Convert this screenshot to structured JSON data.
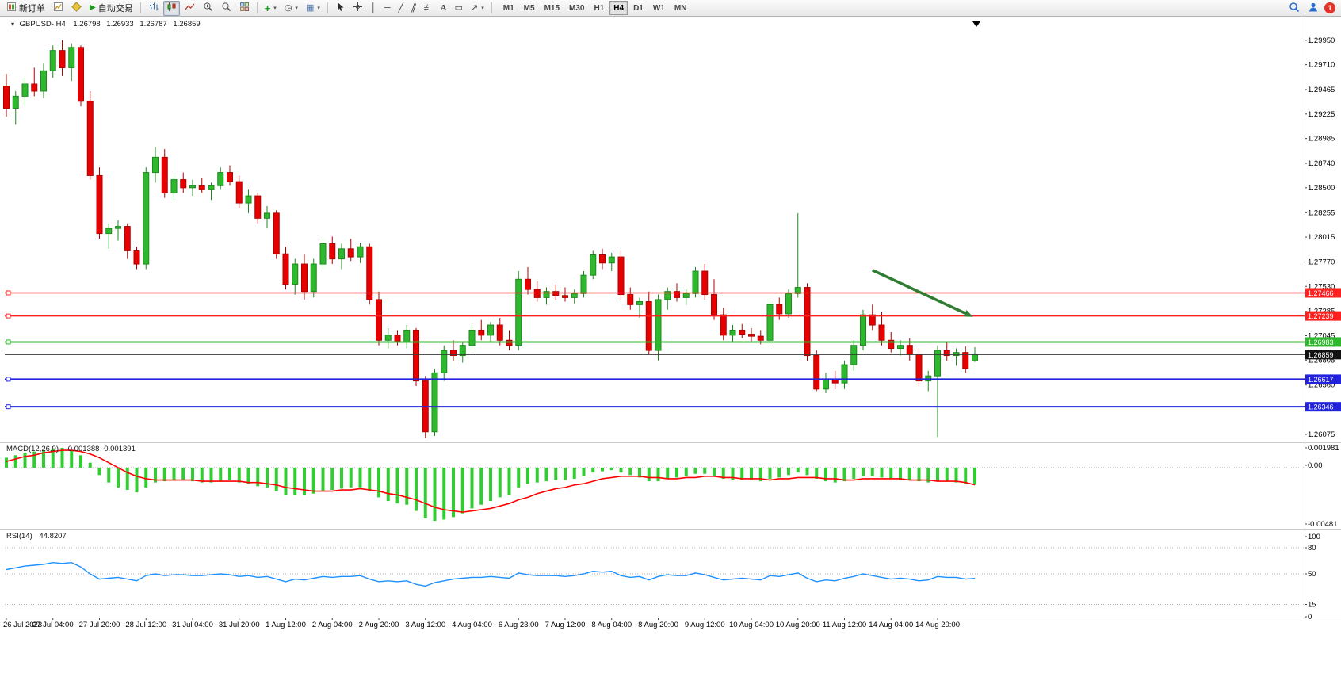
{
  "toolbar": {
    "new_order_label": "新订单",
    "auto_trading_label": "自动交易",
    "text_tool_label": "A",
    "timeframes": [
      "M1",
      "M5",
      "M15",
      "M30",
      "H1",
      "H4",
      "D1",
      "W1",
      "MN"
    ],
    "active_timeframe": "H4",
    "notification_count": "1"
  },
  "symbol_header": {
    "symbol": "GBPUSD-,H4",
    "open": "1.26798",
    "high": "1.26933",
    "low": "1.26787",
    "close": "1.26859"
  },
  "indicators": {
    "macd": {
      "title": "MACD(12,26,9)",
      "values": "-0.001388 -0.001391"
    },
    "rsi": {
      "title": "RSI(14)",
      "value": "44.8207"
    }
  },
  "colors": {
    "up": "#2eb82e",
    "up_stroke": "#1d8a1d",
    "down": "#e60000",
    "down_stroke": "#b00000",
    "macd_hist": "#32cd32",
    "macd_signal": "#ff0000",
    "rsi_line": "#1e90ff",
    "arrow": "#2e7d32",
    "axis_text": "#000000"
  },
  "chart_data": [
    {
      "type": "candlestick",
      "title": "GBPUSD H4",
      "ylim": [
        1.2602,
        1.3012
      ],
      "y_axis_labels": [
        "1.29950",
        "1.29710",
        "1.29465",
        "1.29225",
        "1.28985",
        "1.28740",
        "1.28500",
        "1.28255",
        "1.28015",
        "1.27770",
        "1.27530",
        "1.27285",
        "1.27045",
        "1.26805",
        "1.26560",
        "1.26075"
      ],
      "x_axis_labels": [
        "26 Jul 2023",
        "27 Jul 04:00",
        "27 Jul 20:00",
        "28 Jul 12:00",
        "31 Jul 04:00",
        "31 Jul 20:00",
        "1 Aug 12:00",
        "2 Aug 04:00",
        "2 Aug 20:00",
        "3 Aug 12:00",
        "4 Aug 04:00",
        "6 Aug 23:00",
        "7 Aug 12:00",
        "8 Aug 04:00",
        "8 Aug 20:00",
        "9 Aug 12:00",
        "10 Aug 04:00",
        "10 Aug 20:00",
        "11 Aug 12:00",
        "14 Aug 04:00",
        "14 Aug 20:00"
      ],
      "candles": [
        [
          1.295,
          1.2962,
          1.292,
          1.2928
        ],
        [
          1.2928,
          1.2945,
          1.2912,
          1.294
        ],
        [
          1.294,
          1.2958,
          1.293,
          1.2952
        ],
        [
          1.2952,
          1.2968,
          1.294,
          1.2945
        ],
        [
          1.2945,
          1.2972,
          1.2938,
          1.2965
        ],
        [
          1.2965,
          1.299,
          1.2958,
          1.2985
        ],
        [
          1.2985,
          1.2995,
          1.296,
          1.2968
        ],
        [
          1.2968,
          1.2992,
          1.2955,
          1.2988
        ],
        [
          1.2988,
          1.299,
          1.293,
          1.2935
        ],
        [
          1.2935,
          1.2945,
          1.2858,
          1.2862
        ],
        [
          1.2862,
          1.287,
          1.28,
          1.2805
        ],
        [
          1.2805,
          1.2815,
          1.279,
          1.281
        ],
        [
          1.281,
          1.2818,
          1.2798,
          1.2812
        ],
        [
          1.2812,
          1.2815,
          1.278,
          1.2788
        ],
        [
          1.2788,
          1.2792,
          1.277,
          1.2775
        ],
        [
          1.2775,
          1.287,
          1.277,
          1.2865
        ],
        [
          1.2865,
          1.289,
          1.2855,
          1.288
        ],
        [
          1.288,
          1.2888,
          1.284,
          1.2845
        ],
        [
          1.2845,
          1.2862,
          1.2838,
          1.2858
        ],
        [
          1.2858,
          1.2865,
          1.2845,
          1.285
        ],
        [
          1.285,
          1.2858,
          1.2842,
          1.2852
        ],
        [
          1.2852,
          1.286,
          1.2845,
          1.2848
        ],
        [
          1.2848,
          1.2855,
          1.2838,
          1.2852
        ],
        [
          1.2852,
          1.287,
          1.2848,
          1.2865
        ],
        [
          1.2865,
          1.2872,
          1.2852,
          1.2856
        ],
        [
          1.2856,
          1.2862,
          1.283,
          1.2835
        ],
        [
          1.2835,
          1.2848,
          1.2825,
          1.2842
        ],
        [
          1.2842,
          1.2845,
          1.2815,
          1.282
        ],
        [
          1.282,
          1.2832,
          1.281,
          1.2825
        ],
        [
          1.2825,
          1.2828,
          1.278,
          1.2785
        ],
        [
          1.2785,
          1.2792,
          1.275,
          1.2755
        ],
        [
          1.2755,
          1.278,
          1.2745,
          1.2775
        ],
        [
          1.2775,
          1.2785,
          1.274,
          1.2748
        ],
        [
          1.2748,
          1.278,
          1.2742,
          1.2775
        ],
        [
          1.2775,
          1.28,
          1.277,
          1.2795
        ],
        [
          1.2795,
          1.2802,
          1.2775,
          1.278
        ],
        [
          1.278,
          1.2795,
          1.277,
          1.279
        ],
        [
          1.279,
          1.28,
          1.2778,
          1.2782
        ],
        [
          1.2782,
          1.2796,
          1.2776,
          1.2792
        ],
        [
          1.2792,
          1.2795,
          1.2735,
          1.274
        ],
        [
          1.274,
          1.2748,
          1.2695,
          1.27
        ],
        [
          1.27,
          1.2712,
          1.2692,
          1.2705
        ],
        [
          1.2705,
          1.271,
          1.2695,
          1.2698
        ],
        [
          1.2698,
          1.2715,
          1.2692,
          1.271
        ],
        [
          1.271,
          1.2712,
          1.2655,
          1.266
        ],
        [
          1.266,
          1.2665,
          1.2604,
          1.261
        ],
        [
          1.261,
          1.2672,
          1.2606,
          1.2668
        ],
        [
          1.2668,
          1.2695,
          1.266,
          1.269
        ],
        [
          1.269,
          1.27,
          1.268,
          1.2685
        ],
        [
          1.2685,
          1.2698,
          1.2678,
          1.2695
        ],
        [
          1.2695,
          1.2715,
          1.269,
          1.271
        ],
        [
          1.271,
          1.272,
          1.27,
          1.2705
        ],
        [
          1.2705,
          1.2718,
          1.2698,
          1.2715
        ],
        [
          1.2715,
          1.2722,
          1.2695,
          1.27
        ],
        [
          1.27,
          1.271,
          1.269,
          1.2695
        ],
        [
          1.2695,
          1.2768,
          1.269,
          1.276
        ],
        [
          1.276,
          1.2772,
          1.2745,
          1.275
        ],
        [
          1.275,
          1.2758,
          1.2738,
          1.2742
        ],
        [
          1.2742,
          1.2752,
          1.2735,
          1.2748
        ],
        [
          1.2748,
          1.2755,
          1.274,
          1.2744
        ],
        [
          1.2744,
          1.2752,
          1.2738,
          1.2742
        ],
        [
          1.2742,
          1.275,
          1.2736,
          1.2746
        ],
        [
          1.2746,
          1.2768,
          1.2742,
          1.2764
        ],
        [
          1.2764,
          1.2788,
          1.276,
          1.2784
        ],
        [
          1.2784,
          1.279,
          1.277,
          1.2776
        ],
        [
          1.2776,
          1.2786,
          1.2768,
          1.2782
        ],
        [
          1.2782,
          1.2788,
          1.274,
          1.2745
        ],
        [
          1.2745,
          1.2752,
          1.273,
          1.2735
        ],
        [
          1.2735,
          1.2742,
          1.2722,
          1.2738
        ],
        [
          1.2738,
          1.2748,
          1.2686,
          1.269
        ],
        [
          1.269,
          1.2745,
          1.268,
          1.274
        ],
        [
          1.274,
          1.2752,
          1.273,
          1.2748
        ],
        [
          1.2748,
          1.2756,
          1.2738,
          1.2742
        ],
        [
          1.2742,
          1.275,
          1.2735,
          1.2746
        ],
        [
          1.2746,
          1.2772,
          1.2742,
          1.2768
        ],
        [
          1.2768,
          1.2775,
          1.274,
          1.2745
        ],
        [
          1.2745,
          1.276,
          1.272,
          1.2725
        ],
        [
          1.2725,
          1.2732,
          1.27,
          1.2705
        ],
        [
          1.2705,
          1.2715,
          1.2698,
          1.271
        ],
        [
          1.271,
          1.2716,
          1.2702,
          1.2706
        ],
        [
          1.2706,
          1.2712,
          1.2698,
          1.2704
        ],
        [
          1.2704,
          1.271,
          1.2696,
          1.27
        ],
        [
          1.27,
          1.274,
          1.2696,
          1.2735
        ],
        [
          1.2735,
          1.2742,
          1.272,
          1.2726
        ],
        [
          1.2726,
          1.275,
          1.2722,
          1.2746
        ],
        [
          1.2746,
          1.2825,
          1.2742,
          1.2752
        ],
        [
          1.2752,
          1.2756,
          1.268,
          1.2685
        ],
        [
          1.2685,
          1.269,
          1.265,
          1.2652
        ],
        [
          1.2652,
          1.2668,
          1.2648,
          1.2662
        ],
        [
          1.2662,
          1.267,
          1.2652,
          1.2658
        ],
        [
          1.2658,
          1.268,
          1.2652,
          1.2676
        ],
        [
          1.2676,
          1.27,
          1.267,
          1.2695
        ],
        [
          1.2695,
          1.273,
          1.269,
          1.2725
        ],
        [
          1.2725,
          1.2735,
          1.271,
          1.2715
        ],
        [
          1.2715,
          1.2728,
          1.2695,
          1.27
        ],
        [
          1.27,
          1.2708,
          1.2688,
          1.2692
        ],
        [
          1.2692,
          1.27,
          1.2685,
          1.2695
        ],
        [
          1.2695,
          1.2702,
          1.268,
          1.2686
        ],
        [
          1.2686,
          1.2692,
          1.2655,
          1.266
        ],
        [
          1.266,
          1.267,
          1.265,
          1.2665
        ],
        [
          1.2665,
          1.2695,
          1.2605,
          1.269
        ],
        [
          1.269,
          1.2698,
          1.268,
          1.2685
        ],
        [
          1.2685,
          1.2692,
          1.2675,
          1.2688
        ],
        [
          1.2688,
          1.2694,
          1.2668,
          1.2672
        ],
        [
          1.26798,
          1.26933,
          1.26787,
          1.26859
        ]
      ],
      "hlines": [
        {
          "price": 1.27466,
          "label": "1.27466",
          "color": "#ff2020",
          "width": 1.5
        },
        {
          "price": 1.27239,
          "label": "1.27239",
          "color": "#ff2020",
          "width": 1.5
        },
        {
          "price": 1.26983,
          "label": "1.26983",
          "color": "#2eb82e",
          "width": 2
        },
        {
          "price": 1.26859,
          "label": "1.26859",
          "color": "#3a3a3a",
          "width": 1,
          "current": true
        },
        {
          "price": 1.26617,
          "label": "1.26617",
          "color": "#2323dd",
          "width": 2
        },
        {
          "price": 1.26346,
          "label": "1.26346",
          "color": "#2323dd",
          "width": 2
        }
      ],
      "arrow": {
        "from_candle": 93.0,
        "from_price": 1.2769,
        "to_candle": 103.8,
        "to_price": 1.2723
      }
    },
    {
      "type": "macd_histogram",
      "title": "MACD(12,26,9)",
      "ylim": [
        -0.00481,
        0.001981
      ],
      "y_axis_labels": [
        "0.001981",
        "0.00",
        "-0.00481"
      ],
      "histogram": [
        0.0008,
        0.001,
        0.0012,
        0.0013,
        0.0014,
        0.0015,
        0.0016,
        0.0014,
        0.001,
        0.0004,
        -0.0006,
        -0.0012,
        -0.0016,
        -0.0018,
        -0.002,
        -0.0016,
        -0.0012,
        -0.0011,
        -0.001,
        -0.001,
        -0.0011,
        -0.0012,
        -0.0012,
        -0.0011,
        -0.001,
        -0.0012,
        -0.0013,
        -0.0015,
        -0.0016,
        -0.0019,
        -0.0022,
        -0.0022,
        -0.0022,
        -0.0021,
        -0.0019,
        -0.0018,
        -0.0017,
        -0.0016,
        -0.0016,
        -0.0019,
        -0.0024,
        -0.0027,
        -0.0029,
        -0.003,
        -0.0035,
        -0.0041,
        -0.0043,
        -0.0042,
        -0.004,
        -0.0037,
        -0.0033,
        -0.003,
        -0.0027,
        -0.0024,
        -0.0022,
        -0.0016,
        -0.0013,
        -0.0012,
        -0.0011,
        -0.001,
        -0.001,
        -0.0009,
        -0.0007,
        -0.0004,
        -0.0003,
        -0.0002,
        -0.0004,
        -0.0006,
        -0.0008,
        -0.0011,
        -0.0011,
        -0.0009,
        -0.0008,
        -0.0007,
        -0.0005,
        -0.0005,
        -0.0007,
        -0.0009,
        -0.001,
        -0.001,
        -0.001,
        -0.0011,
        -0.0009,
        -0.0008,
        -0.0006,
        -0.0004,
        -0.0006,
        -0.0009,
        -0.0011,
        -0.0012,
        -0.0011,
        -0.0009,
        -0.0007,
        -0.0007,
        -0.0008,
        -0.0009,
        -0.001,
        -0.001,
        -0.0011,
        -0.0012,
        -0.0011,
        -0.0011,
        -0.0012,
        -0.0013,
        -0.001388
      ],
      "signal": [
        0.0005,
        0.0007,
        0.0009,
        0.001,
        0.0012,
        0.0013,
        0.0014,
        0.0014,
        0.0013,
        0.0011,
        0.0008,
        0.0004,
        0.0,
        -0.0004,
        -0.0007,
        -0.0009,
        -0.001,
        -0.001,
        -0.001,
        -0.001,
        -0.001,
        -0.0011,
        -0.0011,
        -0.0011,
        -0.0011,
        -0.0011,
        -0.0012,
        -0.0012,
        -0.0013,
        -0.0014,
        -0.0016,
        -0.0017,
        -0.0018,
        -0.0019,
        -0.0019,
        -0.0019,
        -0.0018,
        -0.0018,
        -0.0017,
        -0.0018,
        -0.0019,
        -0.0021,
        -0.0022,
        -0.0024,
        -0.0026,
        -0.0029,
        -0.0032,
        -0.0034,
        -0.0035,
        -0.0036,
        -0.0035,
        -0.0034,
        -0.0033,
        -0.0031,
        -0.0029,
        -0.0026,
        -0.0024,
        -0.0021,
        -0.0019,
        -0.0017,
        -0.0016,
        -0.0014,
        -0.0013,
        -0.0011,
        -0.0009,
        -0.0008,
        -0.0007,
        -0.0007,
        -0.0007,
        -0.0008,
        -0.0008,
        -0.0009,
        -0.0009,
        -0.0008,
        -0.0008,
        -0.0007,
        -0.0007,
        -0.0008,
        -0.0008,
        -0.0009,
        -0.0009,
        -0.0009,
        -0.001,
        -0.0009,
        -0.0009,
        -0.0008,
        -0.0008,
        -0.0008,
        -0.0009,
        -0.0009,
        -0.001,
        -0.001,
        -0.0009,
        -0.0009,
        -0.0009,
        -0.0009,
        -0.0009,
        -0.001,
        -0.001,
        -0.001,
        -0.0011,
        -0.0011,
        -0.0011,
        -0.0012,
        -0.001391
      ]
    },
    {
      "type": "line",
      "title": "RSI(14)",
      "ylim": [
        0,
        100
      ],
      "levels": [
        80,
        50,
        15
      ],
      "y_axis_labels": [
        "100",
        "80",
        "50",
        "15",
        "0"
      ],
      "values": [
        55,
        57,
        59,
        60,
        61,
        63,
        62,
        63,
        58,
        50,
        44,
        45,
        46,
        44,
        42,
        48,
        50,
        48,
        49,
        49,
        48,
        48,
        49,
        50,
        49,
        47,
        48,
        46,
        47,
        44,
        41,
        44,
        43,
        45,
        47,
        46,
        47,
        47,
        48,
        44,
        41,
        42,
        41,
        42,
        38,
        36,
        40,
        42,
        44,
        45,
        46,
        46,
        47,
        46,
        45,
        51,
        49,
        48,
        48,
        48,
        47,
        48,
        50,
        53,
        52,
        53,
        48,
        46,
        47,
        43,
        47,
        49,
        48,
        48,
        51,
        49,
        46,
        43,
        44,
        45,
        44,
        43,
        48,
        47,
        49,
        51,
        45,
        41,
        43,
        42,
        45,
        47,
        50,
        48,
        46,
        44,
        45,
        44,
        42,
        43,
        47,
        46,
        46,
        44,
        44.8207
      ]
    }
  ]
}
